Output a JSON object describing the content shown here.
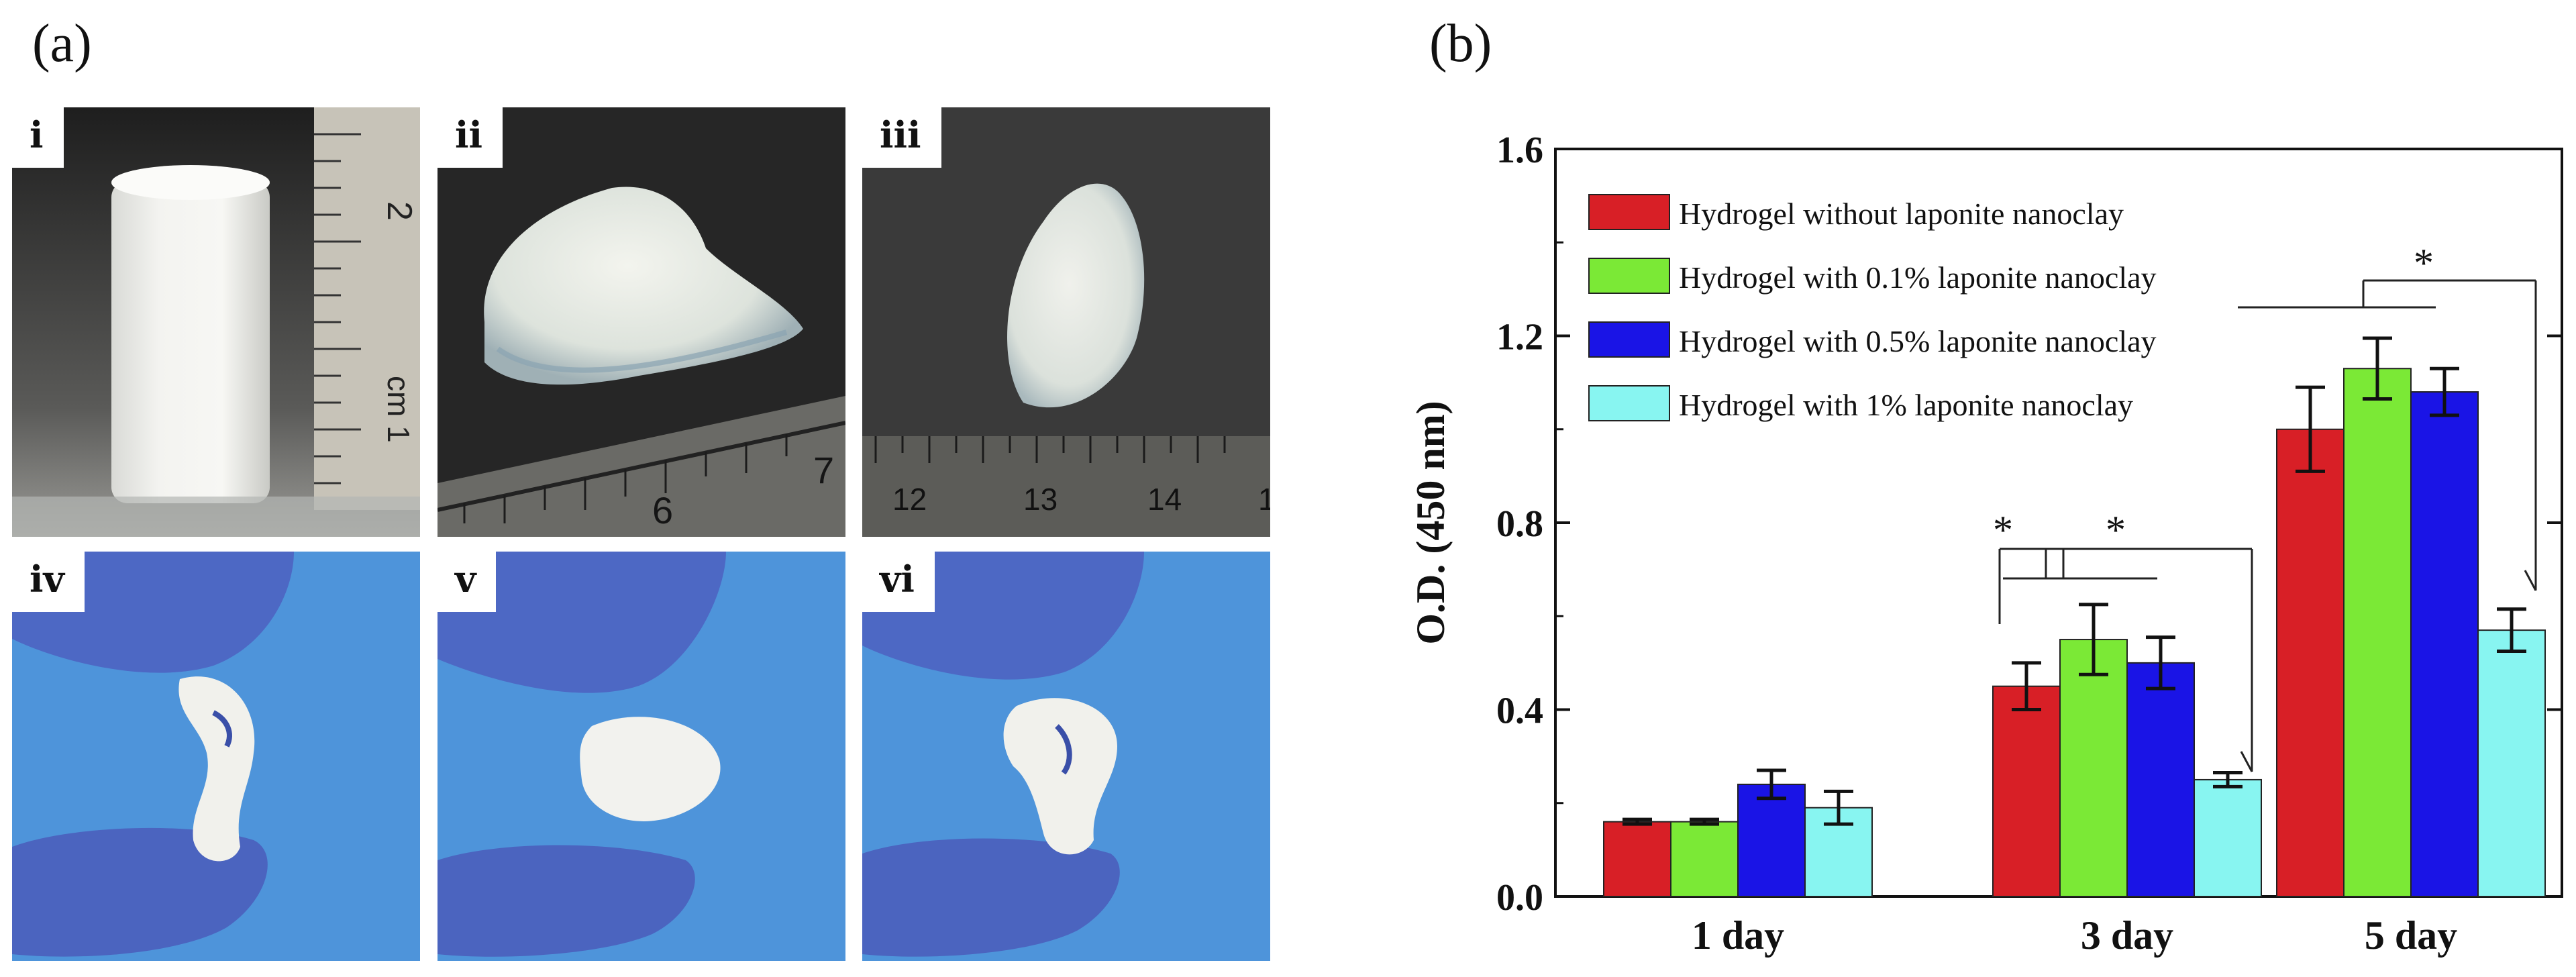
{
  "panels": {
    "a_label": "(a)",
    "b_label": "(b)"
  },
  "photos": [
    {
      "tag": "i",
      "ruler_numbers": [
        "2",
        "cm 1"
      ]
    },
    {
      "tag": "ii",
      "ruler_numbers": [
        "6",
        "7"
      ]
    },
    {
      "tag": "iii",
      "ruler_numbers": [
        "12",
        "13",
        "14",
        "1"
      ]
    },
    {
      "tag": "iv"
    },
    {
      "tag": "v"
    },
    {
      "tag": "vi"
    }
  ],
  "chart_data": {
    "type": "bar",
    "categories": [
      "1 day",
      "3 day",
      "5 day"
    ],
    "ylabel": "O.D. (450 nm)",
    "xlabel": "",
    "ylim": [
      0.0,
      1.6
    ],
    "yticks": [
      "0.0",
      "0.4",
      "0.8",
      "1.2",
      "1.6"
    ],
    "legend_position": "top-left",
    "series": [
      {
        "name": "Hydrogel  without  laponite  nanoclay",
        "color": "#d81f26",
        "values": [
          0.16,
          0.45,
          1.0
        ],
        "errors": [
          0.005,
          0.05,
          0.09
        ]
      },
      {
        "name": "Hydrogel  with  0.1%  laponite  nanoclay",
        "color": "#7be936",
        "values": [
          0.16,
          0.55,
          1.13
        ],
        "errors": [
          0.005,
          0.075,
          0.065
        ]
      },
      {
        "name": "Hydrogel  with  0.5%  laponite  nanoclay",
        "color": "#1a14e6",
        "values": [
          0.24,
          0.5,
          1.08
        ],
        "errors": [
          0.03,
          0.055,
          0.05
        ]
      },
      {
        "name": "Hydrogel  with  1%  laponite  nanoclay",
        "color": "#88f5f1",
        "values": [
          0.19,
          0.25,
          0.57
        ],
        "errors": [
          0.035,
          0.015,
          0.045
        ]
      }
    ],
    "significance": [
      {
        "group": "3 day",
        "label": "*"
      },
      {
        "group": "3 day",
        "label": "*"
      },
      {
        "group": "5 day",
        "label": "*"
      }
    ]
  }
}
